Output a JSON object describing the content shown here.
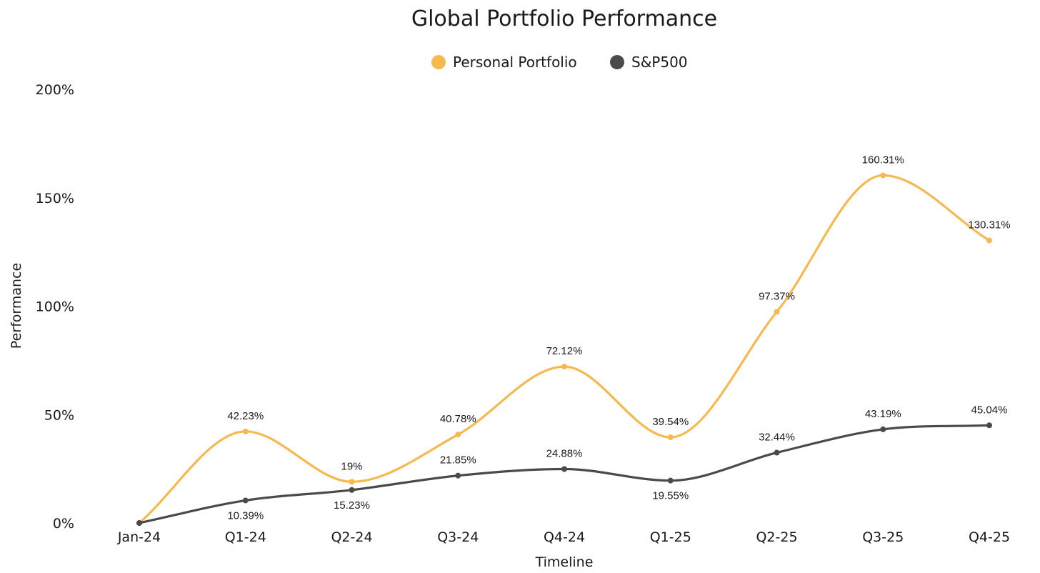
{
  "chart_data": {
    "type": "line",
    "title": "Global Portfolio Performance",
    "xlabel": "Timeline",
    "ylabel": "Performance",
    "categories": [
      "Jan-24",
      "Q1-24",
      "Q2-24",
      "Q3-24",
      "Q4-24",
      "Q1-25",
      "Q2-25",
      "Q3-25",
      "Q4-25"
    ],
    "ylim": [
      0,
      200
    ],
    "yticks": [
      0,
      50,
      100,
      150,
      200
    ],
    "ytick_labels": [
      "0%",
      "50%",
      "100%",
      "150%",
      "200%"
    ],
    "grid": false,
    "legend_position": "top-center",
    "series": [
      {
        "name": "Personal Portfolio",
        "color": "#F6B94F",
        "values": [
          0,
          42.23,
          19,
          40.78,
          72.12,
          39.54,
          97.37,
          160.31,
          130.31
        ],
        "labels": [
          "",
          "42.23%",
          "19%",
          "40.78%",
          "72.12%",
          "39.54%",
          "97.37%",
          "160.31%",
          "130.31%"
        ]
      },
      {
        "name": "S&P500",
        "color": "#4A4A4A",
        "values": [
          0,
          10.39,
          15.23,
          21.85,
          24.88,
          19.55,
          32.44,
          43.19,
          45.04
        ],
        "labels": [
          "",
          "10.39%",
          "15.23%",
          "21.85%",
          "24.88%",
          "19.55%",
          "32.44%",
          "43.19%",
          "45.04%"
        ]
      }
    ]
  }
}
